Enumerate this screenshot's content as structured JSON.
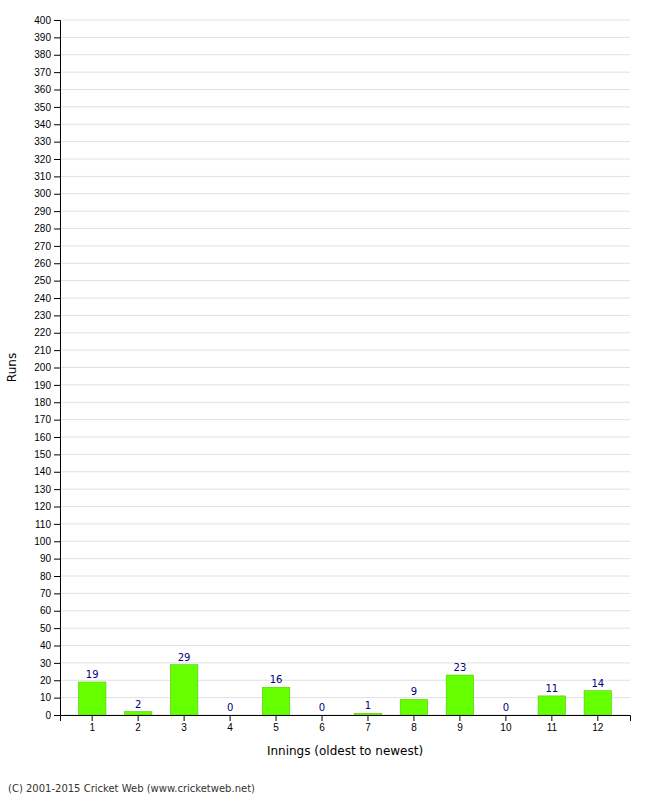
{
  "chart_data": {
    "type": "bar",
    "xlabel": "Innings (oldest to newest)",
    "ylabel": "Runs",
    "categories": [
      1,
      2,
      3,
      4,
      5,
      6,
      7,
      8,
      9,
      10,
      11,
      12
    ],
    "values": [
      19,
      2,
      29,
      0,
      16,
      0,
      1,
      9,
      23,
      0,
      11,
      14
    ],
    "color": "#66ff00",
    "ylim": [
      0,
      400
    ],
    "yticks": [
      0,
      10,
      20,
      30,
      40,
      50,
      60,
      70,
      80,
      90,
      100,
      110,
      120,
      130,
      140,
      150,
      160,
      170,
      180,
      190,
      200,
      210,
      220,
      230,
      240,
      250,
      260,
      270,
      280,
      290,
      300,
      310,
      320,
      330,
      340,
      350,
      360,
      370,
      380,
      390,
      400
    ],
    "grid": true,
    "data_labels": true,
    "annotations": [
      "(C) 2001-2015 Cricket Web (www.cricketweb.net)"
    ]
  }
}
